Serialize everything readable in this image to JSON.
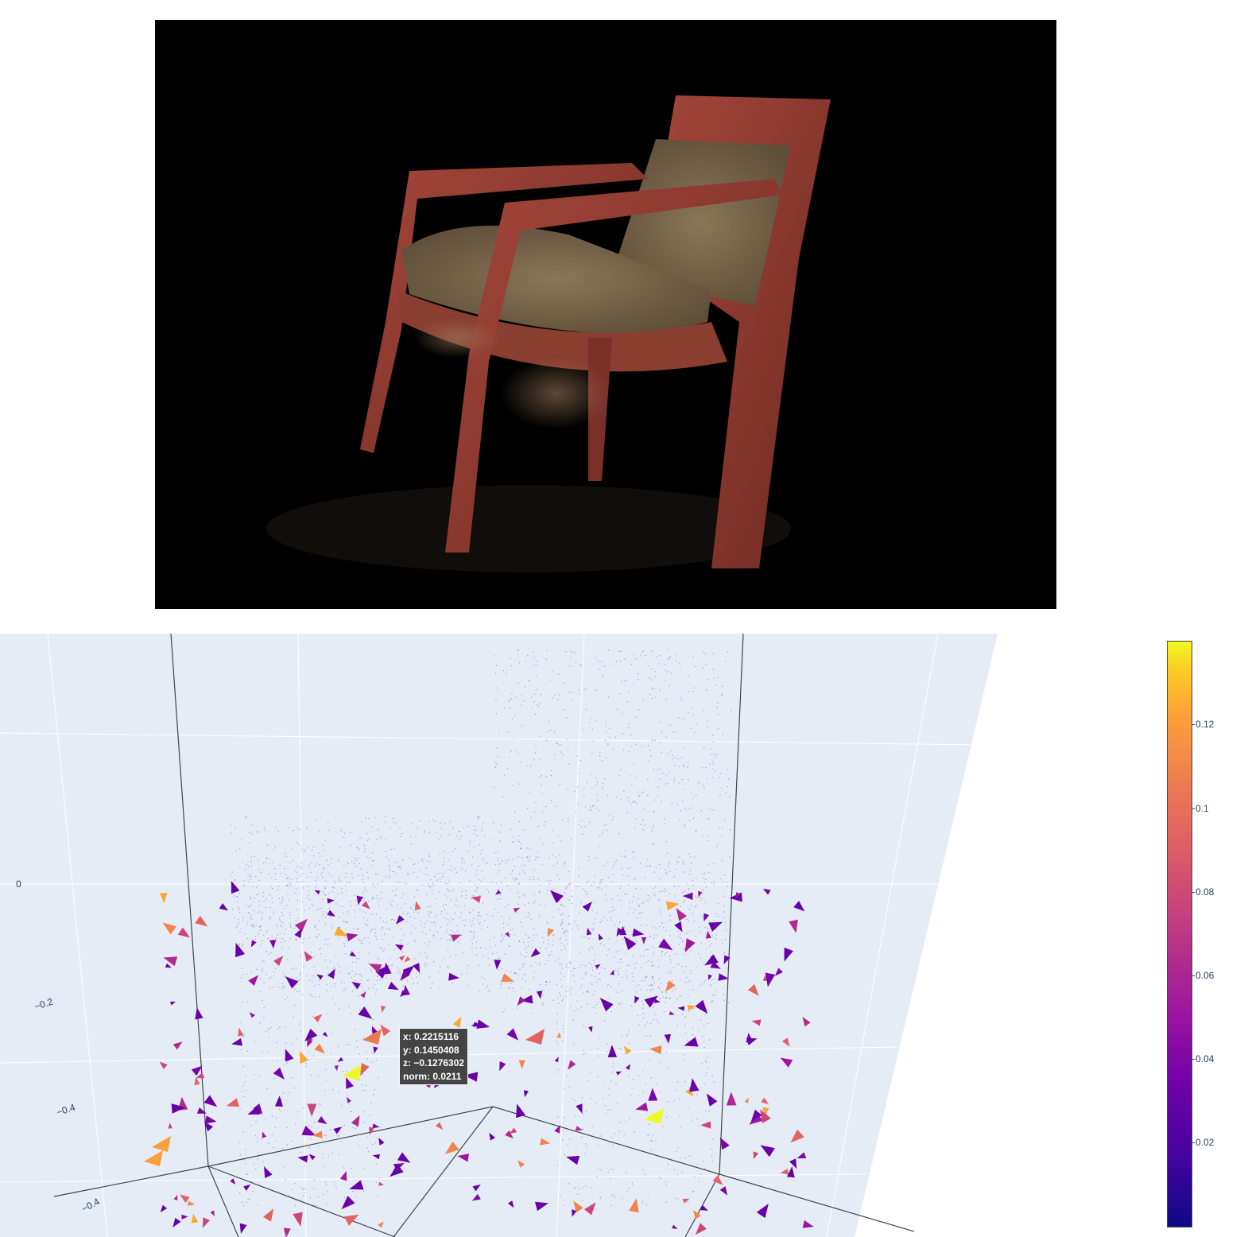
{
  "render": {
    "background": "#000000",
    "subject": "chair"
  },
  "scene": {
    "background": "#e5ecf6",
    "axis_ticks": [
      "0",
      "−0.2",
      "−0.4",
      "−0.4"
    ]
  },
  "hover": {
    "x": "x: 0.2215116",
    "y": "y: 0.1450408",
    "z": "z: −0.1276302",
    "norm": "norm: 0.0211"
  },
  "colorbar": {
    "colorscale": "plasma",
    "ticks": [
      "0.12",
      "0.1",
      "0.08",
      "0.06",
      "0.04",
      "0.02"
    ]
  }
}
